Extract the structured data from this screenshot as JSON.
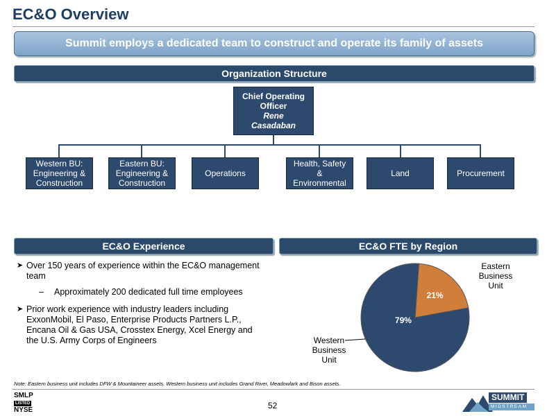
{
  "title": "EC&O Overview",
  "banner": "Summit employs a dedicated team to construct and operate its family of assets",
  "org": {
    "header": "Organization Structure",
    "chief": {
      "title": "Chief Operating Officer",
      "name": "Rene Casadaban"
    },
    "units": [
      "Western BU: Engineering & Construction",
      "Eastern BU: Engineering & Construction",
      "Operations",
      "Health, Safety & Environmental",
      "Land",
      "Procurement"
    ]
  },
  "experience": {
    "header": "EC&O Experience",
    "bullet1": "Over 150 years of experience within the EC&O management team",
    "sub1": "Approximately 200 dedicated full time employees",
    "bullet2": "Prior work experience with industry leaders including ExxonMobil, El Paso, Enterprise Products Partners L.P., Encana Oil & Gas USA, Crosstex Energy, Xcel Energy and the U.S. Army Corps of Engineers",
    "sub_marker": "–"
  },
  "chart_data": {
    "type": "pie",
    "title": "EC&O FTE by Region",
    "slices": [
      {
        "label": "Western Business Unit",
        "value": 79,
        "value_label": "79%",
        "color": "#2d4a6e"
      },
      {
        "label": "Eastern Business Unit",
        "value": 21,
        "value_label": "21%",
        "color": "#d07f3a"
      }
    ]
  },
  "note": "Note: Eastern business unit includes DFW & Mountaineer assets. Western business unit includes Grand River, Meadowlark and Bison assets.",
  "page_number": "52",
  "ticker": {
    "line1": "SMLP",
    "line2": "LISTED",
    "line3": "NYSE"
  },
  "logo": {
    "line1": "SUMMIT",
    "line2": "MIDSTREAM"
  }
}
